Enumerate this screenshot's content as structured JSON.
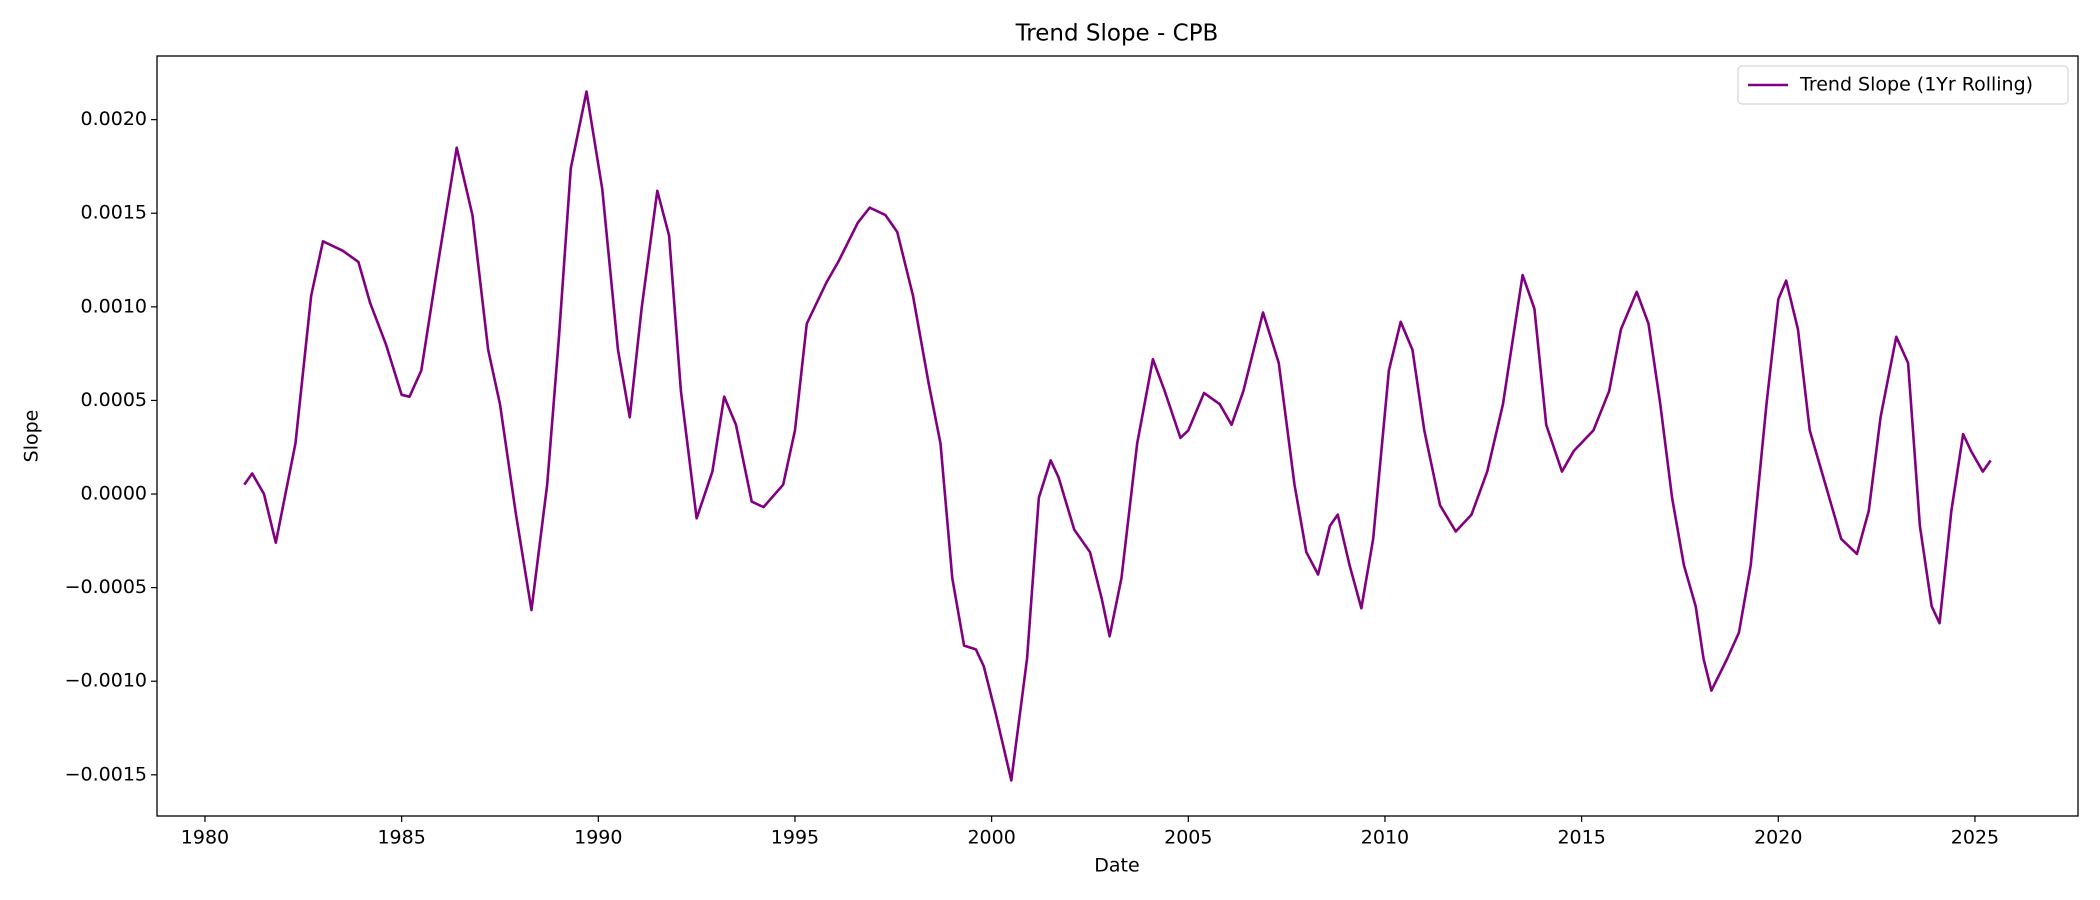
{
  "chart_data": {
    "type": "line",
    "title": "Trend Slope - CPB",
    "x_label": "Date",
    "y_label": "Slope",
    "x": [
      1981.0,
      1981.2,
      1981.5,
      1981.8,
      1982.3,
      1982.7,
      1983.0,
      1983.5,
      1983.9,
      1984.2,
      1984.6,
      1985.0,
      1985.2,
      1985.5,
      1985.9,
      1986.4,
      1986.8,
      1987.2,
      1987.5,
      1987.9,
      1988.3,
      1988.7,
      1989.0,
      1989.3,
      1989.7,
      1990.1,
      1990.5,
      1990.8,
      1991.1,
      1991.5,
      1991.8,
      1992.1,
      1992.5,
      1992.9,
      1993.2,
      1993.5,
      1993.9,
      1994.2,
      1994.7,
      1995.0,
      1995.3,
      1995.8,
      1996.1,
      1996.6,
      1996.9,
      1997.3,
      1997.6,
      1998.0,
      1998.4,
      1998.7,
      1999.0,
      1999.3,
      1999.6,
      1999.8,
      2000.1,
      2000.5,
      2000.9,
      2001.2,
      2001.5,
      2001.7,
      2002.1,
      2002.5,
      2002.8,
      2003.0,
      2003.3,
      2003.7,
      2004.1,
      2004.4,
      2004.8,
      2005.0,
      2005.4,
      2005.8,
      2006.1,
      2006.4,
      2006.9,
      2007.3,
      2007.7,
      2008.0,
      2008.3,
      2008.6,
      2008.8,
      2009.1,
      2009.4,
      2009.7,
      2010.1,
      2010.4,
      2010.7,
      2011.0,
      2011.4,
      2011.8,
      2012.2,
      2012.6,
      2013.0,
      2013.5,
      2013.8,
      2014.1,
      2014.5,
      2014.8,
      2015.3,
      2015.7,
      2016.0,
      2016.4,
      2016.7,
      2017.0,
      2017.3,
      2017.6,
      2017.9,
      2018.1,
      2018.3,
      2018.7,
      2019.0,
      2019.3,
      2019.7,
      2020.0,
      2020.2,
      2020.5,
      2020.8,
      2021.2,
      2021.6,
      2022.0,
      2022.3,
      2022.6,
      2023.0,
      2023.3,
      2023.6,
      2023.9,
      2024.1,
      2024.4,
      2024.7,
      2024.9,
      2025.2,
      2025.4
    ],
    "series": [
      {
        "name": "Trend Slope (1Yr Rolling)",
        "color": "purple",
        "values": [
          5e-05,
          0.00011,
          0.0,
          -0.00026,
          0.00027,
          0.00106,
          0.00135,
          0.0013,
          0.00124,
          0.00102,
          0.0008,
          0.00053,
          0.00052,
          0.00066,
          0.0012,
          0.00185,
          0.00149,
          0.00077,
          0.00048,
          -0.0001,
          -0.00062,
          5e-05,
          0.00084,
          0.00174,
          0.00215,
          0.00163,
          0.00077,
          0.00041,
          0.00099,
          0.00162,
          0.00138,
          0.00055,
          -0.00013,
          0.00012,
          0.00052,
          0.00037,
          -4e-05,
          -7e-05,
          5e-05,
          0.00034,
          0.00091,
          0.00113,
          0.00124,
          0.00145,
          0.00153,
          0.00149,
          0.0014,
          0.00106,
          0.00059,
          0.00027,
          -0.00045,
          -0.00081,
          -0.00083,
          -0.00092,
          -0.00117,
          -0.00153,
          -0.00088,
          -2e-05,
          0.00018,
          9e-05,
          -0.00019,
          -0.00031,
          -0.00056,
          -0.00076,
          -0.00045,
          0.00027,
          0.00072,
          0.00055,
          0.0003,
          0.00034,
          0.00054,
          0.00048,
          0.00037,
          0.00055,
          0.00097,
          0.0007,
          5e-05,
          -0.00031,
          -0.00043,
          -0.00017,
          -0.00011,
          -0.00038,
          -0.00061,
          -0.00024,
          0.00066,
          0.00092,
          0.00077,
          0.00034,
          -6e-05,
          -0.0002,
          -0.00011,
          0.00012,
          0.00048,
          0.00117,
          0.00099,
          0.00037,
          0.00012,
          0.00023,
          0.00034,
          0.00055,
          0.00088,
          0.00108,
          0.00091,
          0.00048,
          -2e-05,
          -0.00038,
          -0.0006,
          -0.00088,
          -0.00105,
          -0.00088,
          -0.00074,
          -0.00038,
          0.00048,
          0.00104,
          0.00114,
          0.00088,
          0.00034,
          5e-05,
          -0.00024,
          -0.00032,
          -9e-05,
          0.00041,
          0.00084,
          0.0007,
          -0.00017,
          -0.0006,
          -0.00069,
          -9e-05,
          0.00032,
          0.00023,
          0.00012,
          0.00018
        ]
      }
    ],
    "xlim": [
      1978.78,
      2027.62
    ],
    "xticks": [
      1980,
      1985,
      1990,
      1995,
      2000,
      2005,
      2010,
      2015,
      2020,
      2025
    ],
    "ylim": [
      -0.00172,
      0.00234
    ],
    "yticks": [
      {
        "value": -0.0015,
        "label": "−0.0015"
      },
      {
        "value": -0.001,
        "label": "−0.0010"
      },
      {
        "value": -0.0005,
        "label": "−0.0005"
      },
      {
        "value": 0,
        "label": "0.0000"
      },
      {
        "value": 0.0005,
        "label": "0.0005"
      },
      {
        "value": 0.001,
        "label": "0.0010"
      },
      {
        "value": 0.0015,
        "label": "0.0015"
      },
      {
        "value": 0.002,
        "label": "0.0020"
      }
    ],
    "grid": false,
    "legend": "upper right"
  }
}
